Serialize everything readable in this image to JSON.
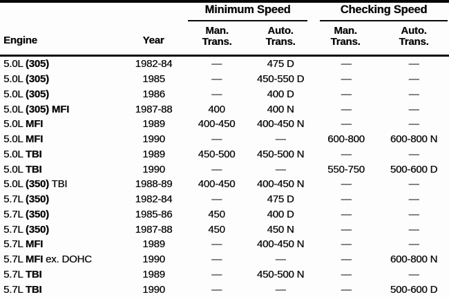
{
  "colors": {
    "text": "#0c0c0c",
    "rule": "#060606",
    "background": "#fdfdfd"
  },
  "table": {
    "group_headers": [
      {
        "label": "Minimum Speed"
      },
      {
        "label": "Checking Speed"
      }
    ],
    "column_headers": {
      "engine": "Engine",
      "year": "Year",
      "min_man_line1": "Man.",
      "min_man_line2": "Trans.",
      "min_auto_line1": "Auto.",
      "min_auto_line2": "Trans.",
      "chk_man_line1": "Man.",
      "chk_man_line2": "Trans.",
      "chk_auto_line1": "Auto.",
      "chk_auto_line2": "Trans."
    },
    "rows": [
      {
        "engine": [
          [
            "5.0L ",
            false
          ],
          [
            "(305)",
            true
          ]
        ],
        "year": "1982-84",
        "min_man": "—",
        "min_auto": "475 D",
        "chk_man": "—",
        "chk_auto": "—"
      },
      {
        "engine": [
          [
            "5.0L ",
            false
          ],
          [
            "(305)",
            true
          ]
        ],
        "year": "1985",
        "min_man": "—",
        "min_auto": "450-550 D",
        "chk_man": "—",
        "chk_auto": "—"
      },
      {
        "engine": [
          [
            "5.0L ",
            false
          ],
          [
            "(305)",
            true
          ]
        ],
        "year": "1986",
        "min_man": "—",
        "min_auto": "400 D",
        "chk_man": "—",
        "chk_auto": "—"
      },
      {
        "engine": [
          [
            "5.0L ",
            false
          ],
          [
            "(305)",
            true
          ],
          [
            " MFI",
            true
          ]
        ],
        "year": "1987-88",
        "min_man": "400",
        "min_auto": "400 N",
        "chk_man": "—",
        "chk_auto": "—"
      },
      {
        "engine": [
          [
            "5.0L ",
            false
          ],
          [
            "MFI",
            true
          ]
        ],
        "year": "1989",
        "min_man": "400-450",
        "min_auto": "400-450 N",
        "chk_man": "—",
        "chk_auto": "—"
      },
      {
        "engine": [
          [
            "5.0L ",
            false
          ],
          [
            "MFI",
            true
          ]
        ],
        "year": "1990",
        "min_man": "—",
        "min_auto": "—",
        "chk_man": "600-800",
        "chk_auto": "600-800 N"
      },
      {
        "engine": [
          [
            "5.0L ",
            false
          ],
          [
            "TBI",
            true
          ]
        ],
        "year": "1989",
        "min_man": "450-500",
        "min_auto": "450-500 N",
        "chk_man": "—",
        "chk_auto": "—"
      },
      {
        "engine": [
          [
            "5.0L ",
            false
          ],
          [
            "TBI",
            true
          ]
        ],
        "year": "1990",
        "min_man": "—",
        "min_auto": "—",
        "chk_man": "550-750",
        "chk_auto": "500-600 D"
      },
      {
        "engine": [
          [
            "5.0L ",
            false
          ],
          [
            "(350)",
            true
          ],
          [
            " TBI",
            false
          ]
        ],
        "year": "1988-89",
        "min_man": "400-450",
        "min_auto": "400-450 N",
        "chk_man": "—",
        "chk_auto": "—"
      },
      {
        "engine": [
          [
            "5.7L ",
            false
          ],
          [
            "(350)",
            true
          ]
        ],
        "year": "1982-84",
        "min_man": "—",
        "min_auto": "475 D",
        "chk_man": "—",
        "chk_auto": "—"
      },
      {
        "engine": [
          [
            "5.7L ",
            false
          ],
          [
            "(350)",
            true
          ]
        ],
        "year": "1985-86",
        "min_man": "450",
        "min_auto": "400 D",
        "chk_man": "—",
        "chk_auto": "—"
      },
      {
        "engine": [
          [
            "5.7L ",
            false
          ],
          [
            "(350)",
            true
          ]
        ],
        "year": "1987-88",
        "min_man": "450",
        "min_auto": "450 N",
        "chk_man": "—",
        "chk_auto": "—"
      },
      {
        "engine": [
          [
            "5.7L ",
            false
          ],
          [
            "MFI",
            true
          ]
        ],
        "year": "1989",
        "min_man": "—",
        "min_auto": "400-450 N",
        "chk_man": "—",
        "chk_auto": "—"
      },
      {
        "engine": [
          [
            "5.7L ",
            false
          ],
          [
            "MFI",
            true
          ],
          [
            " ex. DOHC",
            false
          ]
        ],
        "year": "1990",
        "min_man": "—",
        "min_auto": "—",
        "chk_man": "—",
        "chk_auto": "600-800 N"
      },
      {
        "engine": [
          [
            "5.7L ",
            false
          ],
          [
            "TBI",
            true
          ]
        ],
        "year": "1989",
        "min_man": "—",
        "min_auto": "450-500 N",
        "chk_man": "—",
        "chk_auto": "—"
      },
      {
        "engine": [
          [
            "5.7L ",
            false
          ],
          [
            "TBI",
            true
          ]
        ],
        "year": "1990",
        "min_man": "—",
        "min_auto": "—",
        "chk_man": "—",
        "chk_auto": "500-600 D"
      }
    ]
  }
}
